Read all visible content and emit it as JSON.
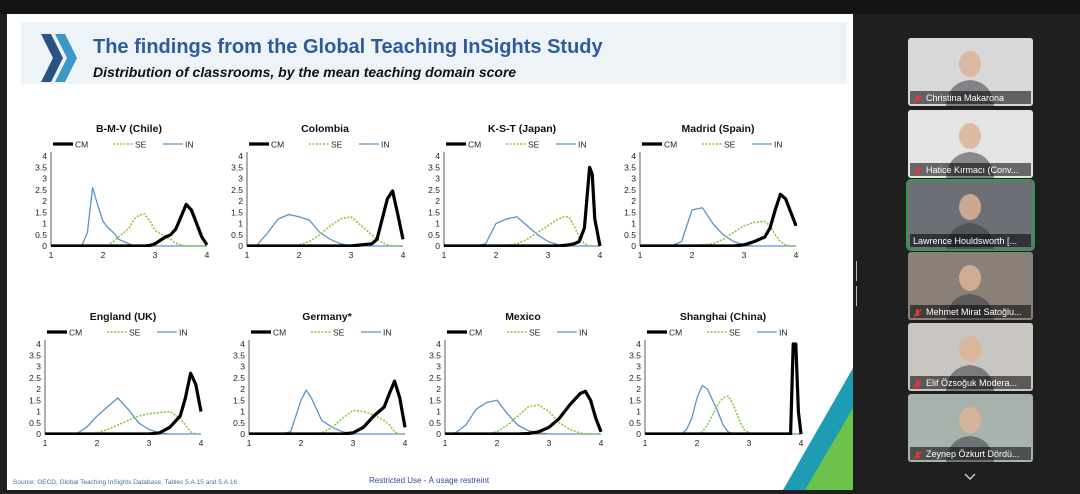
{
  "slide": {
    "title": "The findings from the Global Teaching InSights Study",
    "subtitle": "Distribution of classrooms, by the mean teaching domain score",
    "source": "Source: OECD, Global Teaching InSights Database, Tables 5.A.15 and 5.A.16",
    "restricted": "Restricted Use - À usage restreint"
  },
  "legend": {
    "cm": "CM",
    "se": "SE",
    "in": "IN"
  },
  "series_colors": {
    "CM": "#000000",
    "SE": "#8cc63f",
    "IN": "#5b93c5"
  },
  "axes": {
    "xlim": [
      1,
      4
    ],
    "ylim": [
      0,
      4
    ],
    "xticks": [
      "1",
      "2",
      "3",
      "4"
    ],
    "yticks": [
      "0",
      "0.5",
      "1",
      "1.5",
      "2",
      "2.5",
      "3",
      "3.5",
      "4"
    ]
  },
  "chart_data": [
    {
      "type": "line",
      "title": "B-M-V (Chile)",
      "x": [
        1,
        1.5,
        1.6,
        1.7,
        1.8,
        1.9,
        2.0,
        2.1,
        2.2,
        2.3,
        2.5,
        2.6,
        2.7,
        2.8,
        2.9,
        3.0,
        3.1,
        3.2,
        3.3,
        3.4,
        3.5,
        3.6,
        3.7,
        3.8,
        3.9,
        4.0
      ],
      "series": [
        {
          "name": "CM",
          "values": [
            0,
            0,
            0,
            0,
            0,
            0,
            0,
            0,
            0,
            0,
            0,
            0,
            0,
            0,
            0.02,
            0.1,
            0.25,
            0.4,
            0.5,
            0.75,
            1.3,
            1.85,
            1.6,
            1.0,
            0.4,
            0.05
          ]
        },
        {
          "name": "SE",
          "values": [
            0,
            0,
            0,
            0,
            0,
            0,
            0,
            0.05,
            0.2,
            0.4,
            0.8,
            1.2,
            1.38,
            1.42,
            1.1,
            0.7,
            0.55,
            0.42,
            0.3,
            0.12,
            0.05,
            0,
            0,
            0,
            0,
            0
          ]
        },
        {
          "name": "IN",
          "values": [
            0,
            0,
            0.05,
            0.6,
            2.6,
            1.8,
            1.1,
            0.8,
            0.6,
            0.3,
            0.1,
            0,
            0,
            0,
            0,
            0,
            0,
            0,
            0,
            0,
            0,
            0,
            0,
            0,
            0,
            0
          ]
        }
      ]
    },
    {
      "type": "line",
      "title": "Colombia",
      "x": [
        1,
        1.2,
        1.4,
        1.6,
        1.8,
        2.0,
        2.2,
        2.4,
        2.6,
        2.8,
        3.0,
        3.2,
        3.4,
        3.5,
        3.6,
        3.7,
        3.8,
        3.9,
        4.0
      ],
      "series": [
        {
          "name": "CM",
          "values": [
            0,
            0,
            0,
            0,
            0,
            0,
            0,
            0,
            0,
            0,
            0,
            0.05,
            0.1,
            0.3,
            1.2,
            2.1,
            2.45,
            1.4,
            0.3
          ]
        },
        {
          "name": "SE",
          "values": [
            0,
            0,
            0,
            0,
            0,
            0.05,
            0.2,
            0.5,
            0.9,
            1.2,
            1.3,
            0.9,
            0.5,
            0.3,
            0.15,
            0.05,
            0,
            0,
            0
          ]
        },
        {
          "name": "IN",
          "values": [
            0,
            0.05,
            0.6,
            1.2,
            1.4,
            1.3,
            1.15,
            0.6,
            0.3,
            0.1,
            0,
            0,
            0,
            0,
            0,
            0,
            0,
            0,
            0
          ]
        }
      ]
    },
    {
      "type": "line",
      "title": "K-S-T (Japan)",
      "x": [
        1,
        1.6,
        1.8,
        2.0,
        2.2,
        2.4,
        2.6,
        2.8,
        3.0,
        3.2,
        3.3,
        3.4,
        3.5,
        3.6,
        3.7,
        3.8,
        3.85,
        3.9,
        4.0
      ],
      "series": [
        {
          "name": "CM",
          "values": [
            0,
            0,
            0,
            0,
            0,
            0,
            0,
            0,
            0,
            0,
            0.02,
            0.05,
            0.1,
            0.2,
            0.8,
            3.5,
            3.2,
            1.2,
            0
          ]
        },
        {
          "name": "SE",
          "values": [
            0,
            0,
            0,
            0,
            0,
            0.1,
            0.3,
            0.6,
            0.9,
            1.2,
            1.3,
            1.3,
            0.9,
            0.4,
            0.1,
            0,
            0,
            0,
            0
          ]
        },
        {
          "name": "IN",
          "values": [
            0,
            0,
            0.1,
            1.0,
            1.2,
            1.3,
            0.9,
            0.5,
            0.2,
            0.05,
            0,
            0,
            0,
            0,
            0,
            0,
            0,
            0,
            0
          ]
        }
      ]
    },
    {
      "type": "line",
      "title": "Madrid (Spain)",
      "x": [
        1,
        1.6,
        1.8,
        2.0,
        2.2,
        2.4,
        2.6,
        2.8,
        3.0,
        3.2,
        3.4,
        3.5,
        3.6,
        3.7,
        3.8,
        3.9,
        4.0
      ],
      "series": [
        {
          "name": "CM",
          "values": [
            0,
            0,
            0,
            0,
            0,
            0,
            0,
            0,
            0.05,
            0.2,
            0.4,
            0.8,
            1.6,
            2.3,
            2.1,
            1.5,
            0.9
          ]
        },
        {
          "name": "SE",
          "values": [
            0,
            0,
            0,
            0,
            0.05,
            0.1,
            0.3,
            0.6,
            0.9,
            1.05,
            1.1,
            0.9,
            0.5,
            0.2,
            0.05,
            0,
            0
          ]
        },
        {
          "name": "IN",
          "values": [
            0,
            0,
            0.2,
            1.6,
            1.7,
            1.0,
            0.5,
            0.2,
            0.05,
            0,
            0,
            0,
            0,
            0,
            0,
            0,
            0
          ]
        }
      ]
    },
    {
      "type": "line",
      "title": "England (UK)",
      "x": [
        1,
        1.6,
        1.8,
        2.0,
        2.2,
        2.4,
        2.6,
        2.8,
        3.0,
        3.2,
        3.4,
        3.6,
        3.7,
        3.8,
        3.9,
        4.0
      ],
      "series": [
        {
          "name": "CM",
          "values": [
            0,
            0,
            0,
            0,
            0,
            0,
            0,
            0,
            0,
            0.05,
            0.3,
            0.8,
            1.6,
            2.7,
            2.2,
            1.0
          ]
        },
        {
          "name": "SE",
          "values": [
            0,
            0,
            0,
            0.05,
            0.2,
            0.4,
            0.6,
            0.8,
            0.9,
            0.95,
            1.0,
            0.7,
            0.4,
            0.1,
            0,
            0
          ]
        },
        {
          "name": "IN",
          "values": [
            0,
            0,
            0.3,
            0.8,
            1.2,
            1.6,
            1.1,
            0.5,
            0.2,
            0.05,
            0,
            0,
            0,
            0,
            0,
            0
          ]
        }
      ]
    },
    {
      "type": "line",
      "title": "Germany*",
      "x": [
        1,
        1.6,
        1.8,
        2.0,
        2.1,
        2.2,
        2.4,
        2.6,
        2.8,
        3.0,
        3.2,
        3.4,
        3.6,
        3.7,
        3.8,
        3.9,
        4.0
      ],
      "series": [
        {
          "name": "CM",
          "values": [
            0,
            0,
            0,
            0,
            0,
            0,
            0,
            0,
            0,
            0.05,
            0.3,
            0.8,
            1.2,
            1.8,
            2.35,
            1.6,
            0.3
          ]
        },
        {
          "name": "SE",
          "values": [
            0,
            0,
            0,
            0,
            0,
            0,
            0.05,
            0.3,
            0.7,
            1.05,
            1.0,
            0.85,
            0.6,
            0.4,
            0.1,
            0,
            0
          ]
        },
        {
          "name": "IN",
          "values": [
            0,
            0,
            0.1,
            1.5,
            1.95,
            1.6,
            0.6,
            0.3,
            0.1,
            0,
            0,
            0,
            0,
            0,
            0,
            0,
            0
          ]
        }
      ]
    },
    {
      "type": "line",
      "title": "Mexico",
      "x": [
        1,
        1.2,
        1.4,
        1.6,
        1.8,
        2.0,
        2.2,
        2.4,
        2.6,
        2.8,
        3.0,
        3.2,
        3.4,
        3.6,
        3.7,
        3.8,
        3.9,
        4.0
      ],
      "series": [
        {
          "name": "CM",
          "values": [
            0,
            0,
            0,
            0,
            0,
            0,
            0,
            0,
            0.02,
            0.1,
            0.3,
            0.7,
            1.3,
            1.8,
            1.9,
            1.5,
            0.7,
            0.1
          ]
        },
        {
          "name": "SE",
          "values": [
            0,
            0,
            0,
            0,
            0,
            0.1,
            0.4,
            0.8,
            1.2,
            1.3,
            1.0,
            0.5,
            0.2,
            0.05,
            0,
            0,
            0,
            0
          ]
        },
        {
          "name": "IN",
          "values": [
            0,
            0.05,
            0.4,
            1.1,
            1.4,
            1.5,
            0.9,
            0.4,
            0.15,
            0.05,
            0,
            0,
            0,
            0,
            0,
            0,
            0,
            0
          ]
        }
      ]
    },
    {
      "type": "line",
      "title": "Shanghai (China)",
      "x": [
        1,
        1.7,
        1.8,
        1.9,
        2.0,
        2.1,
        2.2,
        2.4,
        2.5,
        2.6,
        2.7,
        2.8,
        2.9,
        3.0,
        3.1,
        3.8,
        3.85,
        3.9,
        3.95,
        4.0
      ],
      "series": [
        {
          "name": "CM",
          "values": [
            0,
            0,
            0,
            0,
            0,
            0,
            0,
            0,
            0,
            0,
            0,
            0,
            0,
            0,
            0,
            0,
            4.0,
            4.0,
            1.0,
            0
          ]
        },
        {
          "name": "SE",
          "values": [
            0,
            0,
            0,
            0,
            0,
            0.1,
            0.4,
            1.3,
            1.6,
            1.7,
            1.3,
            0.7,
            0.2,
            0.05,
            0,
            0,
            0,
            0,
            0,
            0
          ]
        },
        {
          "name": "IN",
          "values": [
            0,
            0,
            0.2,
            0.7,
            1.6,
            2.15,
            2.0,
            1.0,
            0.4,
            0.1,
            0,
            0,
            0,
            0,
            0,
            0,
            0,
            0,
            0,
            0
          ]
        }
      ]
    }
  ],
  "participants": [
    {
      "name": "Christina Makarona",
      "bg": "#d8d8d8",
      "mic": "mic-muted-icon"
    },
    {
      "name": "Hatice Kırmacı (Conv...",
      "bg": "#e4e4e4",
      "mic": "mic-muted-icon"
    },
    {
      "name": "Lawrence Houldsworth [...",
      "bg": "#6c6f75",
      "mic": ""
    },
    {
      "name": "Mehmet Mirat Satoğlu...",
      "bg": "#8a8078",
      "mic": "mic-muted-icon"
    },
    {
      "name": "Elif Özsoğuk Modera...",
      "bg": "#c9c6c2",
      "mic": "mic-muted-icon"
    },
    {
      "name": "Zeynep Özkurt Dördü...",
      "bg": "#a9b3ad",
      "mic": "mic-muted-icon"
    }
  ]
}
